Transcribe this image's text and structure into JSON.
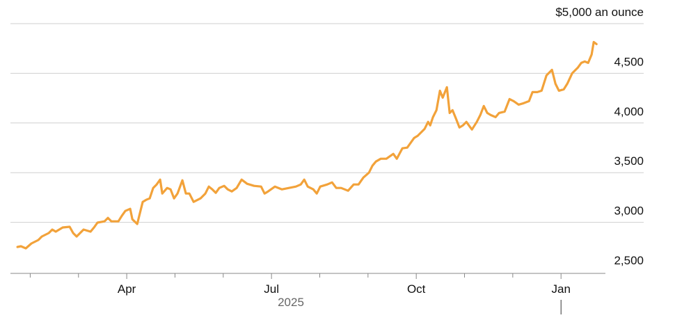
{
  "chart_data": {
    "type": "line",
    "xlabel": "2025",
    "color": "#f2a23a",
    "grid": true,
    "xlim": [
      0.59,
      12.92
    ],
    "xticks": [
      {
        "value": 3,
        "label": "Apr"
      },
      {
        "value": 6,
        "label": "Jul"
      },
      {
        "value": 9,
        "label": "Oct"
      },
      {
        "value": 12,
        "label": "Jan"
      }
    ],
    "xminorticks": [
      1,
      2,
      4,
      5,
      7,
      8,
      10,
      11
    ],
    "ylim": [
      2500,
      5000
    ],
    "yticks": [
      {
        "value": 2500,
        "label": "2,500"
      },
      {
        "value": 3000,
        "label": "3,000"
      },
      {
        "value": 3500,
        "label": "3,500"
      },
      {
        "value": 4000,
        "label": "4,000"
      },
      {
        "value": 4500,
        "label": "4,500"
      },
      {
        "value": 5000,
        "label": "$5,000 an ounce"
      }
    ],
    "x": [
      0.736,
      0.808,
      0.909,
      1.024,
      1.168,
      1.24,
      1.385,
      1.457,
      1.529,
      1.673,
      1.817,
      1.89,
      1.962,
      2.034,
      2.106,
      2.25,
      2.322,
      2.394,
      2.539,
      2.611,
      2.683,
      2.827,
      2.899,
      2.971,
      3.072,
      3.116,
      3.217,
      3.26,
      3.332,
      3.404,
      3.476,
      3.548,
      3.62,
      3.692,
      3.736,
      3.837,
      3.909,
      3.981,
      4.053,
      4.154,
      4.226,
      4.298,
      4.385,
      4.443,
      4.529,
      4.63,
      4.702,
      4.774,
      4.846,
      4.918,
      5.019,
      5.092,
      5.178,
      5.279,
      5.38,
      5.495,
      5.64,
      5.784,
      5.856,
      5.928,
      6.072,
      6.217,
      6.361,
      6.505,
      6.606,
      6.678,
      6.75,
      6.866,
      6.938,
      7.01,
      7.154,
      7.255,
      7.342,
      7.443,
      7.587,
      7.702,
      7.803,
      7.904,
      8.02,
      8.092,
      8.164,
      8.265,
      8.38,
      8.525,
      8.597,
      8.712,
      8.813,
      8.885,
      8.957,
      9.029,
      9.101,
      9.173,
      9.246,
      9.289,
      9.347,
      9.419,
      9.491,
      9.549,
      9.635,
      9.693,
      9.751,
      9.823,
      9.895,
      9.967,
      10.039,
      10.111,
      10.154,
      10.255,
      10.327,
      10.399,
      10.472,
      10.544,
      10.645,
      10.717,
      10.832,
      10.933,
      11.02,
      11.121,
      11.222,
      11.337,
      11.409,
      11.51,
      11.597,
      11.698,
      11.813,
      11.885,
      11.957,
      12.058,
      12.13,
      12.231,
      12.346,
      12.419,
      12.491,
      12.563,
      12.635,
      12.678,
      12.736
    ],
    "values": [
      2752,
      2759,
      2738,
      2787,
      2822,
      2857,
      2892,
      2927,
      2906,
      2948,
      2955,
      2892,
      2857,
      2892,
      2927,
      2906,
      2948,
      2997,
      3010,
      3045,
      3010,
      3010,
      3066,
      3115,
      3136,
      3031,
      2983,
      3066,
      3206,
      3227,
      3241,
      3346,
      3381,
      3430,
      3290,
      3346,
      3332,
      3241,
      3290,
      3423,
      3290,
      3290,
      3206,
      3220,
      3241,
      3290,
      3360,
      3332,
      3297,
      3346,
      3367,
      3332,
      3311,
      3346,
      3430,
      3388,
      3367,
      3360,
      3290,
      3311,
      3360,
      3332,
      3346,
      3360,
      3381,
      3430,
      3360,
      3332,
      3290,
      3360,
      3381,
      3402,
      3346,
      3346,
      3318,
      3381,
      3381,
      3451,
      3500,
      3570,
      3612,
      3640,
      3640,
      3689,
      3640,
      3745,
      3752,
      3801,
      3850,
      3871,
      3906,
      3941,
      4011,
      3976,
      4059,
      4129,
      4325,
      4255,
      4360,
      4101,
      4129,
      4045,
      3955,
      3976,
      4011,
      3962,
      3934,
      4011,
      4080,
      4171,
      4101,
      4080,
      4059,
      4101,
      4115,
      4241,
      4220,
      4185,
      4199,
      4220,
      4311,
      4311,
      4325,
      4479,
      4535,
      4395,
      4325,
      4339,
      4395,
      4500,
      4556,
      4605,
      4619,
      4605,
      4689,
      4815,
      4794
    ]
  }
}
